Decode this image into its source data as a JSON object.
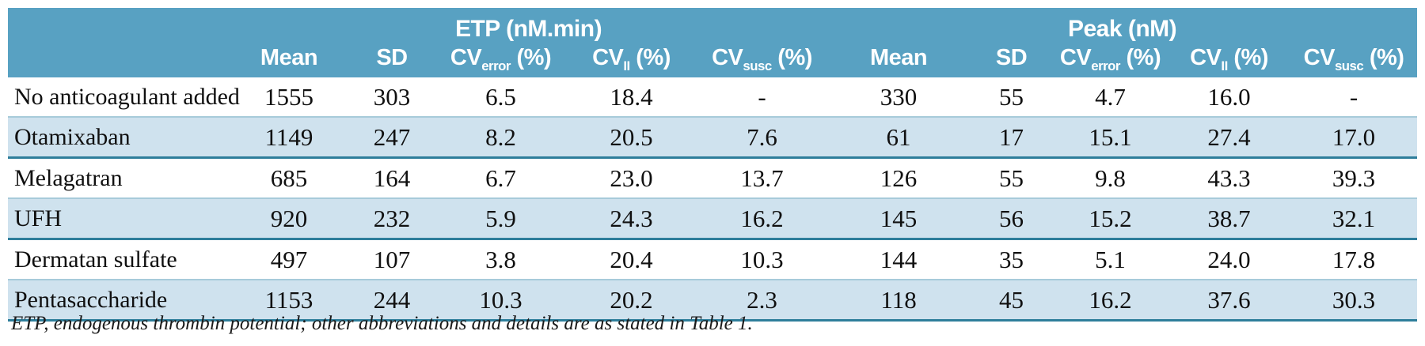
{
  "colors": {
    "header_bg": "#58a1c2",
    "stripe_bg": "#cfe2ee",
    "stripe_border_top": "#a7cbda",
    "stripe_border_bottom": "#2e7e9b"
  },
  "table": {
    "groups": [
      {
        "label": "ETP (nM.min)"
      },
      {
        "label": "Peak (nM)"
      }
    ],
    "columns": [
      {
        "base": "Mean",
        "sub": "",
        "suffix": ""
      },
      {
        "base": "SD",
        "sub": "",
        "suffix": ""
      },
      {
        "base": "CV",
        "sub": "error",
        "suffix": "(%)"
      },
      {
        "base": "CV",
        "sub": "II",
        "suffix": "(%)"
      },
      {
        "base": "CV",
        "sub": "susc",
        "suffix": "(%)"
      }
    ],
    "rows": [
      {
        "label": "No anticoagulant added",
        "etp": [
          "1555",
          "303",
          "6.5",
          "18.4",
          "-"
        ],
        "peak": [
          "330",
          "55",
          "4.7",
          "16.0",
          "-"
        ]
      },
      {
        "label": "Otamixaban",
        "etp": [
          "1149",
          "247",
          "8.2",
          "20.5",
          "7.6"
        ],
        "peak": [
          "61",
          "17",
          "15.1",
          "27.4",
          "17.0"
        ]
      },
      {
        "label": "Melagatran",
        "etp": [
          "685",
          "164",
          "6.7",
          "23.0",
          "13.7"
        ],
        "peak": [
          "126",
          "55",
          "9.8",
          "43.3",
          "39.3"
        ]
      },
      {
        "label": "UFH",
        "etp": [
          "920",
          "232",
          "5.9",
          "24.3",
          "16.2"
        ],
        "peak": [
          "145",
          "56",
          "15.2",
          "38.7",
          "32.1"
        ]
      },
      {
        "label": "Dermatan sulfate",
        "etp": [
          "497",
          "107",
          "3.8",
          "20.4",
          "10.3"
        ],
        "peak": [
          "144",
          "35",
          "5.1",
          "24.0",
          "17.8"
        ]
      },
      {
        "label": "Pentasaccharide",
        "etp": [
          "1153",
          "244",
          "10.3",
          "20.2",
          "2.3"
        ],
        "peak": [
          "118",
          "45",
          "16.2",
          "37.6",
          "30.3"
        ]
      }
    ],
    "footnote": "ETP, endogenous thrombin potential; other abbreviations and details are as stated in Table 1."
  }
}
